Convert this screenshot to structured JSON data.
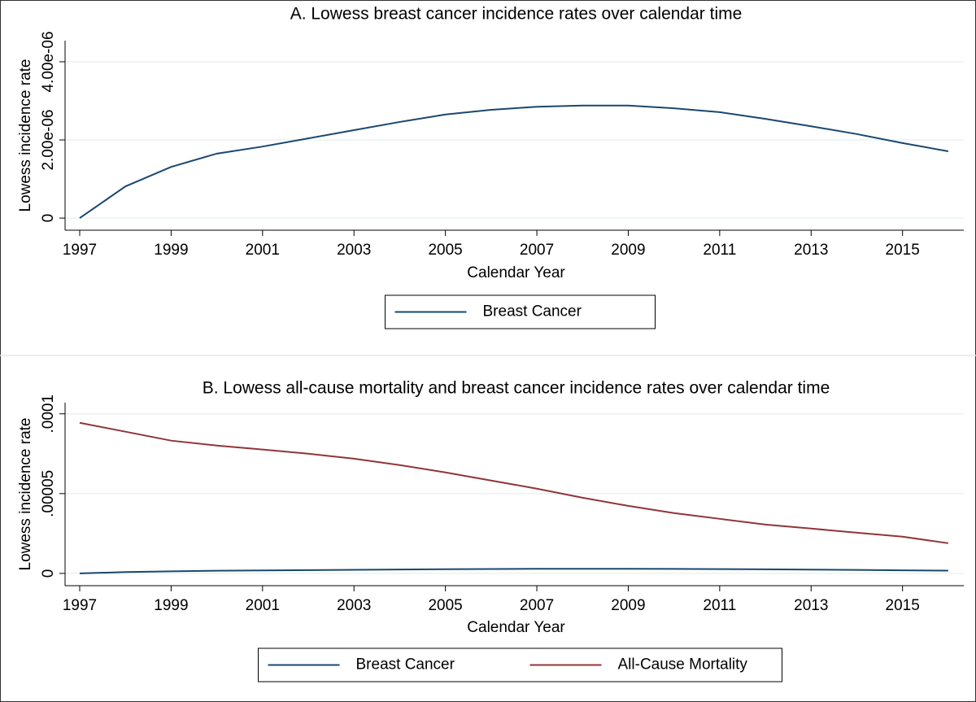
{
  "chart_data": [
    {
      "type": "line",
      "title": "A. Lowess breast cancer incidence rates over calendar time",
      "x_label": "Calendar Year",
      "y_label": "Lowess incidence rate",
      "x": [
        1997,
        1998,
        1999,
        2000,
        2001,
        2002,
        2003,
        2004,
        2005,
        2006,
        2007,
        2008,
        2009,
        2010,
        2011,
        2012,
        2013,
        2014,
        2015,
        2016
      ],
      "series": [
        {
          "name": "Breast Cancer",
          "color": "#1a476f",
          "values": [
            0,
            8.1e-07,
            1.31e-06,
            1.65e-06,
            1.83e-06,
            2.04e-06,
            2.25e-06,
            2.46e-06,
            2.65e-06,
            2.77e-06,
            2.85e-06,
            2.88e-06,
            2.88e-06,
            2.81e-06,
            2.71e-06,
            2.54e-06,
            2.35e-06,
            2.15e-06,
            1.92e-06,
            1.71e-06
          ]
        }
      ],
      "xlim": [
        1996.68,
        2016.34
      ],
      "ylim": [
        -3.1e-07,
        4.54e-06
      ],
      "xticks": [
        1997,
        1999,
        2001,
        2003,
        2005,
        2007,
        2009,
        2011,
        2013,
        2015
      ],
      "yticks": [
        0,
        {
          "value": 2e-06,
          "label": "2.00e-06"
        },
        {
          "value": 4e-06,
          "label": "4.00e-06"
        }
      ],
      "grid": true,
      "legend": "bottom"
    },
    {
      "type": "line",
      "title": "B. Lowess all-cause mortality and breast cancer incidence rates over calendar time",
      "x_label": "Calendar Year",
      "y_label": "Lowess incidence rate",
      "x": [
        1997,
        1998,
        1999,
        2000,
        2001,
        2002,
        2003,
        2004,
        2005,
        2006,
        2007,
        2008,
        2009,
        2010,
        2011,
        2012,
        2013,
        2014,
        2015,
        2016
      ],
      "series": [
        {
          "name": "Breast Cancer",
          "color": "#1a476f",
          "values": [
            0,
            8.1e-07,
            1.31e-06,
            1.65e-06,
            1.83e-06,
            2.04e-06,
            2.25e-06,
            2.46e-06,
            2.65e-06,
            2.77e-06,
            2.85e-06,
            2.88e-06,
            2.88e-06,
            2.81e-06,
            2.71e-06,
            2.54e-06,
            2.35e-06,
            2.15e-06,
            1.92e-06,
            1.71e-06
          ]
        },
        {
          "name": "All-Cause Mortality",
          "color": "#90353b",
          "values": [
            9.44e-05,
            8.88e-05,
            8.32e-05,
            8.01e-05,
            7.76e-05,
            7.5e-05,
            7.19e-05,
            6.79e-05,
            6.33e-05,
            5.82e-05,
            5.31e-05,
            4.74e-05,
            4.23e-05,
            3.78e-05,
            3.42e-05,
            3.06e-05,
            2.81e-05,
            2.55e-05,
            2.3e-05,
            1.89e-05
          ]
        }
      ],
      "xlim": [
        1996.68,
        2016.34
      ],
      "ylim": [
        -7.7e-06,
        0.000107
      ],
      "xticks": [
        1997,
        1999,
        2001,
        2003,
        2005,
        2007,
        2009,
        2011,
        2013,
        2015
      ],
      "yticks": [
        0,
        {
          "value": 5e-05,
          "label": ".00005"
        },
        {
          "value": 0.0001,
          "label": ".0001"
        }
      ],
      "grid": true,
      "legend": "bottom"
    }
  ]
}
